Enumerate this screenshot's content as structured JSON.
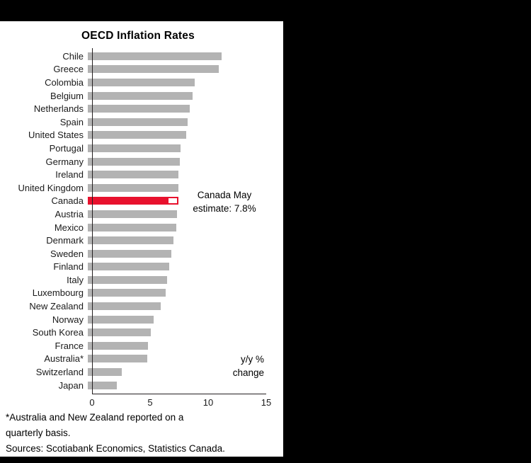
{
  "chart_data": {
    "type": "bar",
    "orientation": "horizontal",
    "title": "OECD Inflation Rates",
    "unit_label": "y/y % change",
    "xlim": [
      0,
      15
    ],
    "x_ticks": [
      0,
      5,
      10,
      15
    ],
    "grid": false,
    "legend": false,
    "bar_color": "#b3b3b3",
    "highlight_color": "#e8112d",
    "categories": [
      "Chile",
      "Greece",
      "Colombia",
      "Belgium",
      "Netherlands",
      "Spain",
      "United States",
      "Portugal",
      "Germany",
      "Ireland",
      "United Kingdom",
      "Canada",
      "Austria",
      "Mexico",
      "Denmark",
      "Sweden",
      "Finland",
      "Italy",
      "Luxembourg",
      "New Zealand",
      "Norway",
      "South Korea",
      "France",
      "Australia*",
      "Switzerland",
      "Japan"
    ],
    "values": [
      11.5,
      11.3,
      9.2,
      9.0,
      8.8,
      8.6,
      8.5,
      8.0,
      7.9,
      7.8,
      7.8,
      7.8,
      7.7,
      7.6,
      7.4,
      7.2,
      7.0,
      6.8,
      6.7,
      6.3,
      5.7,
      5.4,
      5.2,
      5.1,
      2.9,
      2.5
    ],
    "highlight": {
      "category": "Canada",
      "actual": 6.8,
      "estimate": 7.8,
      "note": "Canada May estimate: 7.8%"
    }
  },
  "annotations": {
    "canada_line1": "Canada May",
    "canada_line2": "estimate: 7.8%",
    "unit_line1": "y/y %",
    "unit_line2": "change"
  },
  "footnotes": {
    "line1": "*Australia and New Zealand reported on a",
    "line2": "quarterly basis.",
    "sources": "Sources: Scotiabank Economics, Statistics Canada."
  }
}
